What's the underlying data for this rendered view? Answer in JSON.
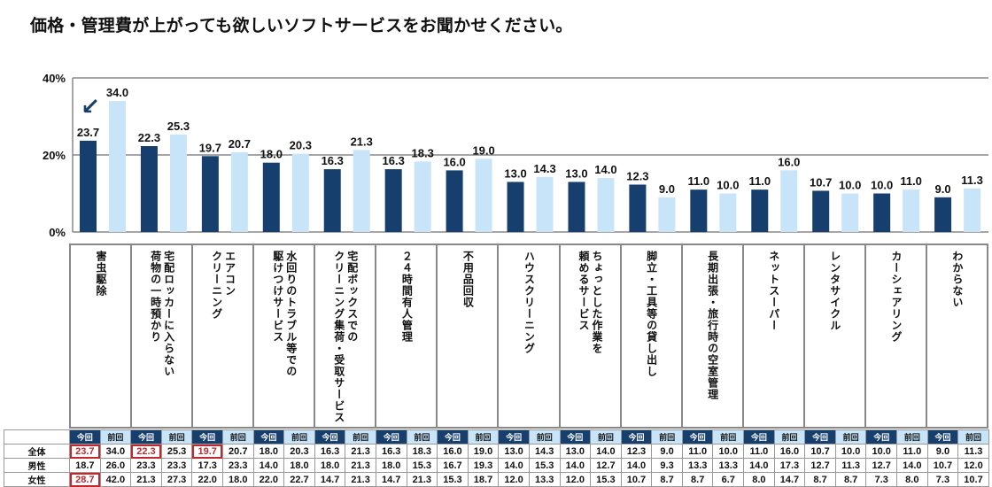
{
  "title": "価格・管理費が上がっても欲しいソフトサービスをお聞かせください。",
  "colors": {
    "current": "#173f6e",
    "previous": "#c8e4f8",
    "highlight": "#c0282d"
  },
  "icons": {
    "trend-arrow": "↙"
  },
  "chart_data": {
    "type": "bar",
    "title": "価格・管理費が上がっても欲しいソフトサービスをお聞かせください。",
    "xlabel": "",
    "ylabel": "",
    "ylim": [
      0,
      40
    ],
    "yticks": [
      "0%",
      "20%",
      "40%"
    ],
    "grid": true,
    "categories": [
      "害虫駆除",
      "宅配ロッカーに入らない\n荷物の一時預かり",
      "エアコン\nクリーニング",
      "水回りのトラブル等での\n駆けつけサービス",
      "宅配ボックスでの\nクリーニング集荷・受取サービス",
      "２４時間有人管理",
      "不用品回収",
      "ハウスクリーニング",
      "ちょっとした作業を\n頼めるサービス",
      "脚立・工具等の貸し出し",
      "長期出張・旅行時の空室管理",
      "ネットスーパー",
      "レンタサイクル",
      "カーシェアリング",
      "わからない"
    ],
    "series": [
      {
        "name": "今回",
        "values": [
          23.7,
          22.3,
          19.7,
          18.0,
          16.3,
          16.3,
          16.0,
          13.0,
          13.0,
          12.3,
          11.0,
          11.0,
          10.7,
          10.0,
          9.0
        ]
      },
      {
        "name": "前回",
        "values": [
          34.0,
          25.3,
          20.7,
          20.3,
          21.3,
          18.3,
          19.0,
          14.3,
          14.0,
          9.0,
          10.0,
          16.0,
          10.0,
          11.0,
          11.3
        ]
      }
    ],
    "annotations": [
      "↙ (decrease marker on 害虫駆除)"
    ]
  },
  "table": {
    "header_current": "今回",
    "header_previous": "前回",
    "rows": [
      {
        "label": "全体",
        "values": [
          "23.7",
          "34.0",
          "22.3",
          "25.3",
          "19.7",
          "20.7",
          "18.0",
          "20.3",
          "16.3",
          "21.3",
          "16.3",
          "18.3",
          "16.0",
          "19.0",
          "13.0",
          "14.3",
          "13.0",
          "14.0",
          "12.3",
          "9.0",
          "11.0",
          "10.0",
          "11.0",
          "16.0",
          "10.7",
          "10.0",
          "10.0",
          "11.0",
          "9.0",
          "11.3"
        ],
        "highlight": [
          0,
          2,
          4
        ]
      },
      {
        "label": "男性",
        "values": [
          "18.7",
          "26.0",
          "23.3",
          "23.3",
          "17.3",
          "23.3",
          "14.0",
          "18.0",
          "18.0",
          "21.3",
          "18.0",
          "15.3",
          "16.7",
          "19.3",
          "14.0",
          "15.3",
          "14.0",
          "12.7",
          "14.0",
          "9.3",
          "13.3",
          "13.3",
          "14.0",
          "17.3",
          "12.7",
          "11.3",
          "12.7",
          "14.0",
          "10.7",
          "12.0"
        ],
        "highlight": []
      },
      {
        "label": "女性",
        "values": [
          "28.7",
          "42.0",
          "21.3",
          "27.3",
          "22.0",
          "18.0",
          "22.0",
          "22.7",
          "14.7",
          "21.3",
          "14.7",
          "21.3",
          "15.3",
          "18.7",
          "12.0",
          "13.3",
          "12.0",
          "15.3",
          "10.7",
          "8.7",
          "8.7",
          "6.7",
          "8.0",
          "14.7",
          "8.7",
          "8.7",
          "7.3",
          "8.0",
          "7.3",
          "10.7"
        ],
        "highlight": [
          0
        ]
      }
    ]
  }
}
